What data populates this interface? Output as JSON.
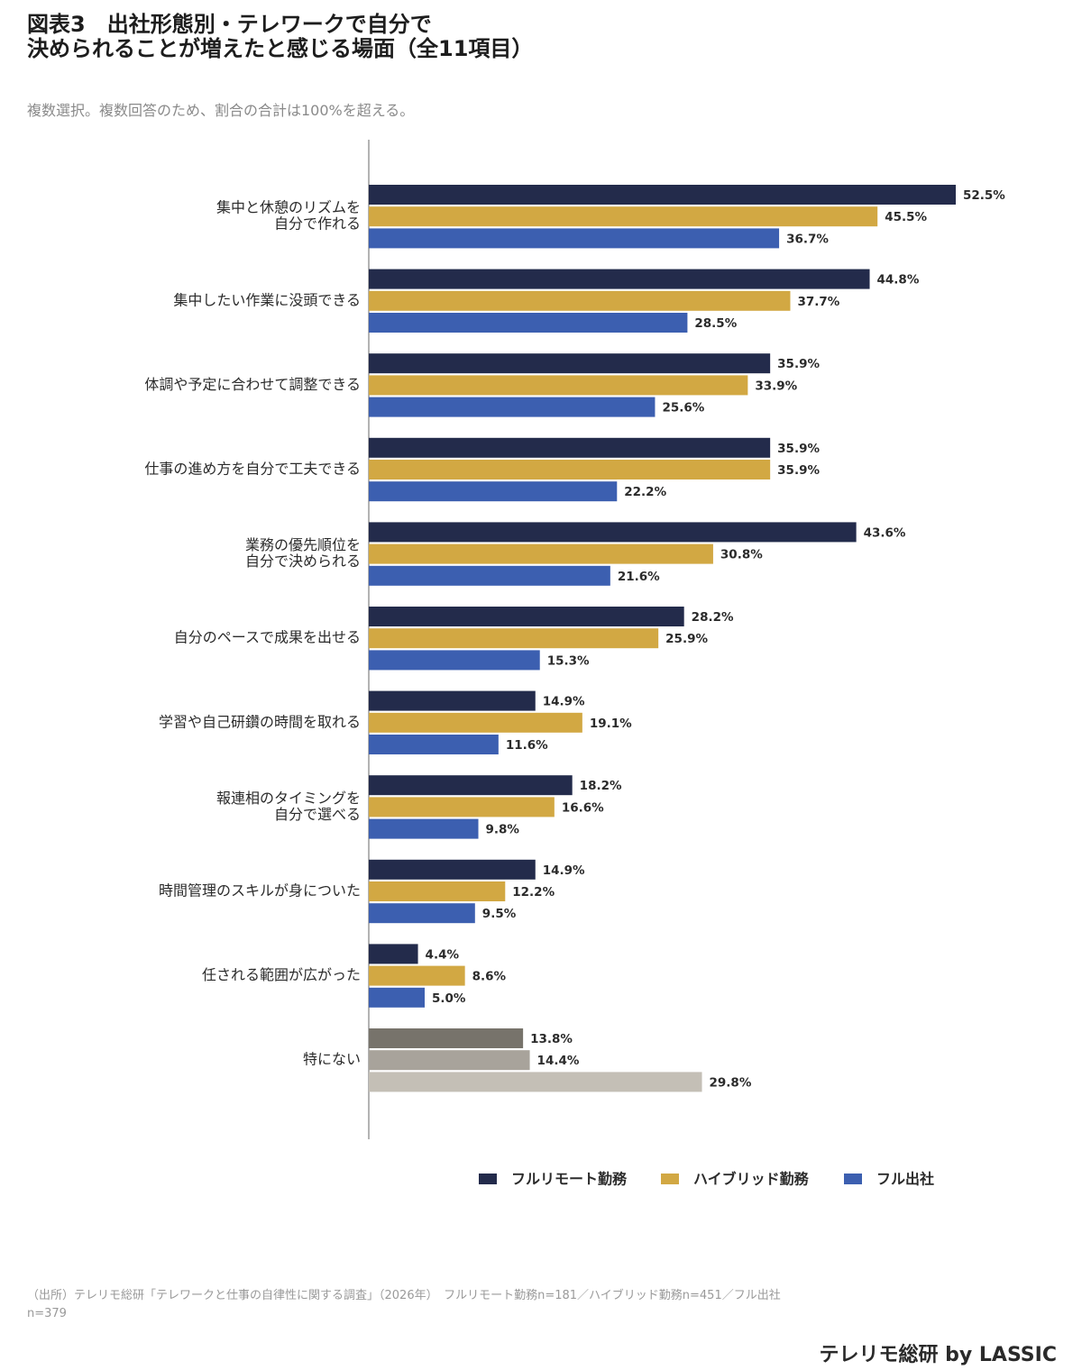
{
  "title_lines": [
    "図表3　出社形態別・テレワークで自分で",
    "決められることが増えたと感じる場面（全11項目）"
  ],
  "subtitle": "複数選択。複数回答のため、割合の合計は100%を超える。",
  "source": "（出所）テレリモ総研「テレワークと仕事の自律性に関する調査」（2026年）　フルリモート勤務n=181／ハイブリッド勤務n=451／フル出社n=379",
  "brand": "テレリモ総研 by LASSIC",
  "chart_data": {
    "type": "bar",
    "orientation": "horizontal",
    "categories": [
      [
        "集中と休憩のリズムを",
        "自分で作れる"
      ],
      [
        "集中したい作業に没頭できる"
      ],
      [
        "体調や予定に合わせて調整できる"
      ],
      [
        "仕事の進め方を自分で工夫できる"
      ],
      [
        "業務の優先順位を",
        "自分で決められる"
      ],
      [
        "自分のペースで成果を出せる"
      ],
      [
        "学習や自己研鑽の時間を取れる"
      ],
      [
        "報連相のタイミングを",
        "自分で選べる"
      ],
      [
        "時間管理のスキルが身についた"
      ],
      [
        "任される範囲が広がった"
      ],
      [
        "特にない"
      ]
    ],
    "series": [
      {
        "name": "フルリモート勤務",
        "color": "#232b4b",
        "values": [
          52.5,
          44.8,
          35.9,
          35.9,
          43.6,
          28.2,
          14.9,
          18.2,
          14.9,
          4.4,
          13.8
        ]
      },
      {
        "name": "ハイブリッド勤務",
        "color": "#d2a843",
        "values": [
          45.5,
          37.7,
          33.9,
          35.9,
          30.8,
          25.9,
          19.1,
          16.6,
          12.2,
          8.6,
          14.4
        ]
      },
      {
        "name": "フル出社",
        "color": "#3c5fb0",
        "values": [
          36.7,
          28.5,
          25.6,
          22.2,
          21.6,
          15.3,
          11.6,
          9.8,
          9.5,
          5.0,
          29.8
        ]
      }
    ],
    "special_category_colors": [
      "#77736b",
      "#a8a39b",
      "#c4bfb6"
    ],
    "value_suffix": "%",
    "xlim": [
      0,
      55
    ],
    "legend_position": "bottom"
  }
}
